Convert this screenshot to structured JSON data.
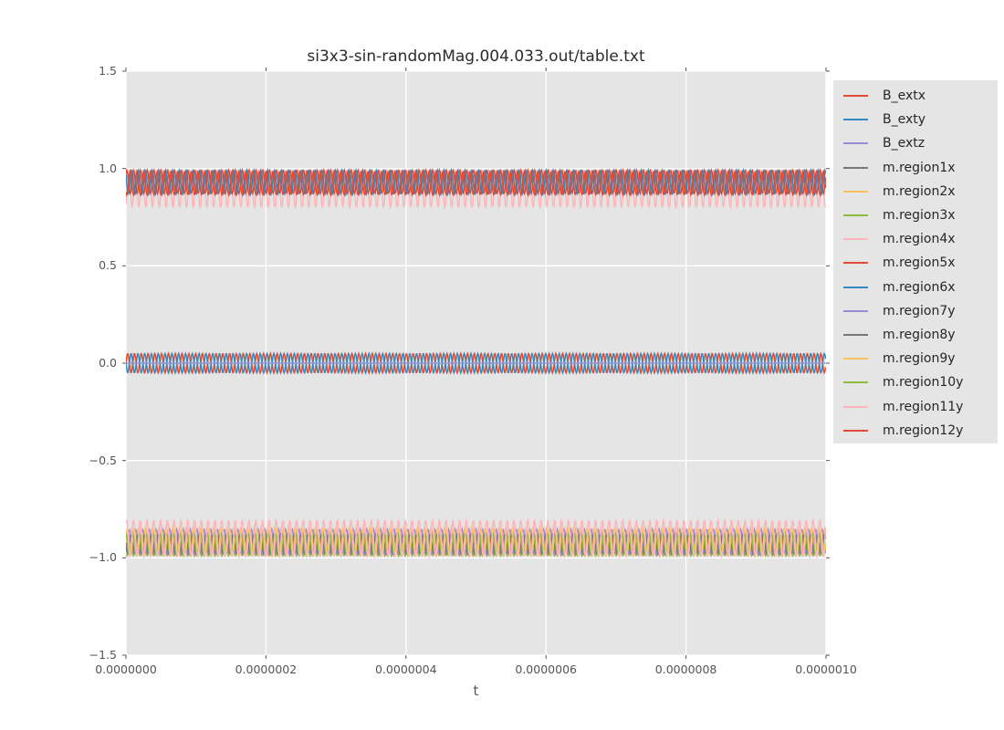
{
  "figure": {
    "background": "#ffffff",
    "plot_background": "#e5e5e5",
    "grid_color": "#ffffff",
    "tick_color": "#555555",
    "tick_label_color": "#555555",
    "title_color": "#2b2b2b",
    "legend_background": "#e5e5e5",
    "legend_text_color": "#262626"
  },
  "chart_data": {
    "type": "line",
    "title": "si3x3-sin-randomMag.004.033.out/table.txt",
    "xlabel": "t",
    "ylabel": "",
    "xlim": [
      0,
      1e-06
    ],
    "ylim": [
      -1.5,
      1.5
    ],
    "grid": true,
    "legend_position": "outside-right",
    "style": "ggplot",
    "cycles_visible": 103,
    "x_ticks": [
      {
        "value": 0.0,
        "label": "0.0000000"
      },
      {
        "value": 2e-07,
        "label": "0.0000002"
      },
      {
        "value": 4e-07,
        "label": "0.0000004"
      },
      {
        "value": 6e-07,
        "label": "0.0000006"
      },
      {
        "value": 8e-07,
        "label": "0.0000008"
      },
      {
        "value": 1e-06,
        "label": "0.0000010"
      }
    ],
    "y_ticks": [
      {
        "value": 1.5,
        "label": "1.5"
      },
      {
        "value": 1.0,
        "label": "1.0"
      },
      {
        "value": 0.5,
        "label": "0.5"
      },
      {
        "value": 0.0,
        "label": "0.0"
      },
      {
        "value": -0.5,
        "label": "−0.5"
      },
      {
        "value": -1.0,
        "label": "−1.0"
      },
      {
        "value": -1.5,
        "label": "−1.5"
      }
    ],
    "series": [
      {
        "name": "B_extx",
        "color": "#E24A33",
        "waveform": "sine",
        "center": 0.0,
        "amplitude": 0.05,
        "phase": 0.0
      },
      {
        "name": "B_exty",
        "color": "#348ABD",
        "waveform": "sine",
        "center": 0.0,
        "amplitude": 0.05,
        "phase": 3.1
      },
      {
        "name": "B_extz",
        "color": "#988ED5",
        "waveform": "constant",
        "center": 0.0,
        "amplitude": 0.0,
        "phase": 0.0
      },
      {
        "name": "m.region1x",
        "color": "#777777",
        "waveform": "sine",
        "center": 0.93,
        "amplitude": 0.05,
        "phase": 2.1
      },
      {
        "name": "m.region2x",
        "color": "#FBC15E",
        "waveform": "sine",
        "center": -0.912,
        "amplitude": 0.068,
        "phase": 2.4
      },
      {
        "name": "m.region3x",
        "color": "#8EBA42",
        "waveform": "sine",
        "center": -0.936,
        "amplitude": 0.054,
        "phase": 4.2
      },
      {
        "name": "m.region4x",
        "color": "#FFB5B8",
        "waveform": "sine",
        "center": 0.895,
        "amplitude": 0.095,
        "phase": 5.3
      },
      {
        "name": "m.region5x",
        "color": "#E24A33",
        "waveform": "sine",
        "center": 0.932,
        "amplitude": 0.06,
        "phase": 0.8
      },
      {
        "name": "m.region6x",
        "color": "#348ABD",
        "waveform": "sine",
        "center": 0.93,
        "amplitude": 0.062,
        "phase": 2.6
      },
      {
        "name": "m.region7y",
        "color": "#988ED5",
        "waveform": "sine",
        "center": -0.915,
        "amplitude": 0.062,
        "phase": 5.0
      },
      {
        "name": "m.region8y",
        "color": "#777777",
        "waveform": "sine",
        "center": -0.93,
        "amplitude": 0.05,
        "phase": 3.0
      },
      {
        "name": "m.region9y",
        "color": "#FBC15E",
        "waveform": "sine",
        "center": -0.915,
        "amplitude": 0.064,
        "phase": 0.3
      },
      {
        "name": "m.region10y",
        "color": "#8EBA42",
        "waveform": "sine",
        "center": -0.93,
        "amplitude": 0.058,
        "phase": 1.7
      },
      {
        "name": "m.region11y",
        "color": "#FFB5B8",
        "waveform": "sine",
        "center": -0.9,
        "amplitude": 0.095,
        "phase": 1.0
      },
      {
        "name": "m.region12y",
        "color": "#E24A33",
        "waveform": "sine",
        "center": 0.925,
        "amplitude": 0.06,
        "phase": 4.0
      }
    ]
  }
}
